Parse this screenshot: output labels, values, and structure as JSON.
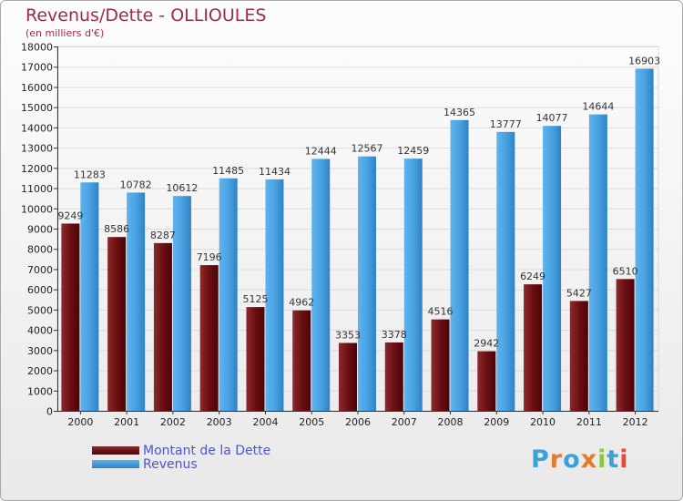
{
  "title": "Revenus/Dette - OLLIOULES",
  "subtitle": "(en milliers d'€)",
  "logo": {
    "text": "Proxiti",
    "letters": [
      "P",
      "r",
      "o",
      "x",
      "i",
      "t",
      "i"
    ],
    "colors": [
      "#3aa2d9",
      "#e6792a",
      "#3aa2d9",
      "#e6792a",
      "#8cc63f",
      "#3aa2d9",
      "#e84a3a"
    ]
  },
  "chart_data": {
    "type": "bar",
    "title": "Revenus/Dette - OLLIOULES",
    "ylabel": "(en milliers d'€)",
    "xlabel": "",
    "ylim": [
      0,
      18000
    ],
    "ytick_step": 1000,
    "grid": true,
    "legend_position": "bottom-left",
    "categories": [
      "2000",
      "2001",
      "2002",
      "2003",
      "2004",
      "2005",
      "2006",
      "2007",
      "2008",
      "2009",
      "2010",
      "2011",
      "2012"
    ],
    "series": [
      {
        "name": "Montant de la Dette",
        "color": "#7a1a1e",
        "values": [
          9249,
          8586,
          8287,
          7196,
          5125,
          4962,
          3353,
          3378,
          4516,
          2942,
          6249,
          5427,
          6510
        ],
        "labels": [
          "9249",
          "8586",
          "8287",
          "7196",
          "5125",
          "4962",
          "3353",
          "3378",
          "4516",
          "2942",
          "6249",
          "5427",
          "6510"
        ]
      },
      {
        "name": "Revenus",
        "color": "#4ea6e6",
        "values": [
          11283,
          10782,
          10612,
          11485,
          11434,
          12444,
          12567,
          12459,
          14365,
          13777,
          14077,
          14644,
          16903
        ],
        "labels": [
          "11283",
          "10782",
          "10612",
          "11485",
          "11434",
          "12444",
          "12567",
          "12459",
          "14365",
          "13777",
          "14077",
          "14644",
          "16903"
        ]
      }
    ]
  }
}
